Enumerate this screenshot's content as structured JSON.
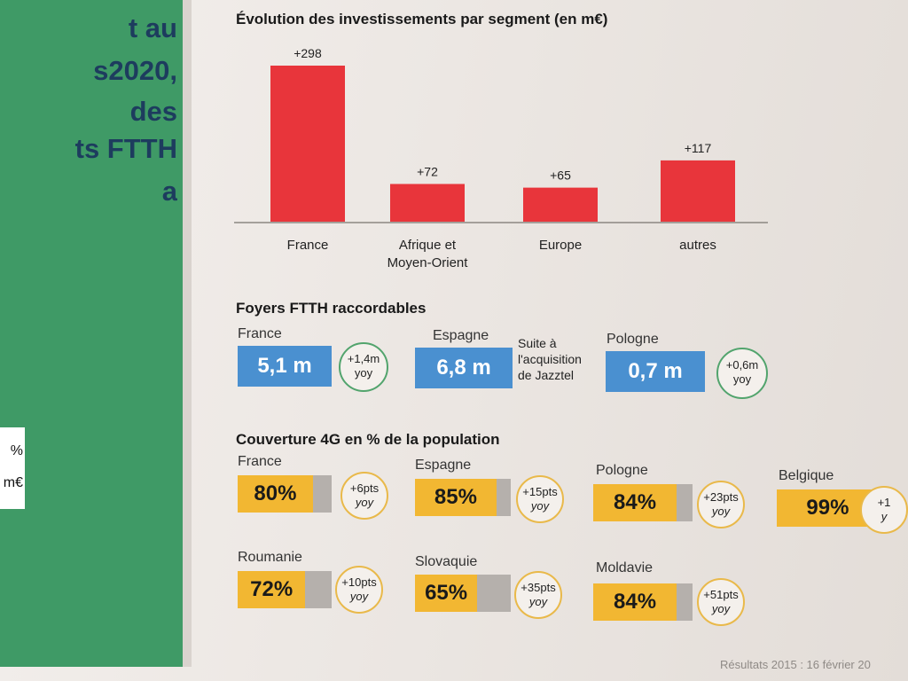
{
  "left_panel": {
    "lines": [
      "t au",
      "s2020,",
      "des",
      "ts FTTH",
      "a"
    ],
    "box_lines": [
      "%",
      "m€"
    ]
  },
  "colors": {
    "bar": "#e8353b",
    "ftth_box": "#4a90d0",
    "coverage_fill": "#f2b732",
    "coverage_rest": "#b5b0ac",
    "green_panel": "#3f9a66"
  },
  "chart_data": {
    "type": "bar",
    "title": "Évolution des investissements par segment (en m€)",
    "categories": [
      "France",
      "Afrique et Moyen-Orient",
      "Europe",
      "autres"
    ],
    "category_lines": [
      [
        "France"
      ],
      [
        "Afrique et",
        "Moyen-Orient"
      ],
      [
        "Europe"
      ],
      [
        "autres"
      ]
    ],
    "values": [
      298,
      72,
      65,
      117
    ],
    "data_labels": [
      "+298",
      "+72",
      "+65",
      "+117"
    ],
    "ylim": [
      0,
      298
    ],
    "grid": false,
    "legend": "none"
  },
  "ftth": {
    "title": "Foyers FTTH raccordables",
    "items": [
      {
        "country": "France",
        "value": "5,1 m",
        "yoy_top": "+1,4m",
        "yoy_bottom": "yoy"
      },
      {
        "country": "Espagne",
        "value": "6,8 m",
        "note_lines": [
          "Suite à",
          "l'acquisition",
          "de Jazztel"
        ]
      },
      {
        "country": "Pologne",
        "value": "0,7 m",
        "yoy_top": "+0,6m",
        "yoy_bottom": "yoy"
      }
    ]
  },
  "coverage": {
    "title": "Couverture 4G en % de la population",
    "items": [
      {
        "country": "France",
        "value": "80%",
        "pct": 80,
        "yoy_top": "+6pts",
        "yoy_bottom": "yoy"
      },
      {
        "country": "Espagne",
        "value": "85%",
        "pct": 85,
        "yoy_top": "+15pts",
        "yoy_bottom": "yoy"
      },
      {
        "country": "Pologne",
        "value": "84%",
        "pct": 84,
        "yoy_top": "+23pts",
        "yoy_bottom": "yoy"
      },
      {
        "country": "Belgique",
        "value": "99%",
        "pct": 99,
        "yoy_top": "+1",
        "yoy_bottom": "y"
      },
      {
        "country": "Roumanie",
        "value": "72%",
        "pct": 72,
        "yoy_top": "+10pts",
        "yoy_bottom": "yoy"
      },
      {
        "country": "Slovaquie",
        "value": "65%",
        "pct": 65,
        "yoy_top": "+35pts",
        "yoy_bottom": "yoy"
      },
      {
        "country": "Moldavie",
        "value": "84%",
        "pct": 84,
        "yoy_top": "+51pts",
        "yoy_bottom": "yoy"
      }
    ]
  },
  "footer": "Résultats 2015 : 16 février 20"
}
